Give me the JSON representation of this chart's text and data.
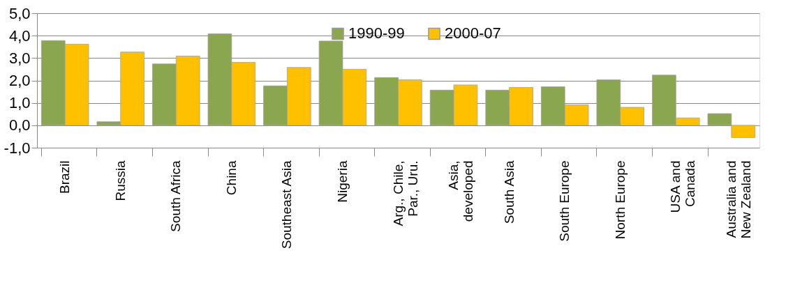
{
  "chart_data": {
    "type": "bar",
    "categories": [
      "Brazil",
      "Russia",
      "South Africa",
      "China",
      "Southeast Asia",
      "Nigeria",
      "Arg., Chile,\nPar., Uru.",
      "Asia,\ndeveloped",
      "South Asia",
      "South Europe",
      "North Europe",
      "USA and\nCanada",
      "Australia and\nNew Zealand"
    ],
    "series": [
      {
        "name": "1990-99",
        "color": "#8aa64e",
        "values": [
          3.78,
          0.16,
          2.74,
          4.08,
          1.76,
          3.76,
          2.13,
          1.57,
          1.57,
          1.72,
          2.03,
          2.24,
          0.52
        ]
      },
      {
        "name": "2000-07",
        "color": "#ffc000",
        "values": [
          3.62,
          3.27,
          3.09,
          2.81,
          2.58,
          2.5,
          2.03,
          1.8,
          1.69,
          0.91,
          0.8,
          0.33,
          -0.55
        ]
      }
    ],
    "ylim": [
      -1,
      5
    ],
    "yticks": [
      {
        "value": -1,
        "label": "-1,0"
      },
      {
        "value": 0,
        "label": "0,0"
      },
      {
        "value": 1,
        "label": "1,0"
      },
      {
        "value": 2,
        "label": "2,0"
      },
      {
        "value": 3,
        "label": "3,0"
      },
      {
        "value": 4,
        "label": "4,0"
      },
      {
        "value": 5,
        "label": "5,0"
      }
    ],
    "grid": "y",
    "legend": "top"
  }
}
